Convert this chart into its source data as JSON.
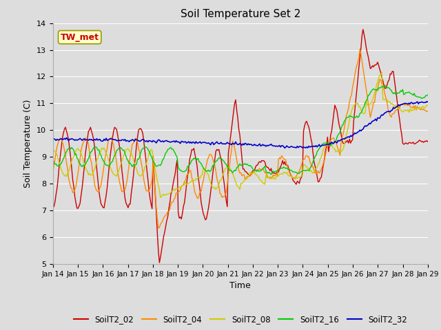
{
  "title": "Soil Temperature Set 2",
  "xlabel": "Time",
  "ylabel": "Soil Temperature (C)",
  "ylim": [
    5.0,
    14.0
  ],
  "yticks": [
    5.0,
    6.0,
    7.0,
    8.0,
    9.0,
    10.0,
    11.0,
    12.0,
    13.0,
    14.0
  ],
  "xtick_labels": [
    "Jan 14",
    "Jan 15",
    "Jan 16",
    "Jan 17",
    "Jan 18",
    "Jan 19",
    "Jan 20",
    "Jan 21",
    "Jan 22",
    "Jan 23",
    "Jan 24",
    "Jan 25",
    "Jan 26",
    "Jan 27",
    "Jan 28",
    "Jan 29"
  ],
  "series_colors": {
    "SoilT2_02": "#cc0000",
    "SoilT2_04": "#ff8800",
    "SoilT2_08": "#cccc00",
    "SoilT2_16": "#00cc00",
    "SoilT2_32": "#0000cc"
  },
  "background_color": "#dddddd",
  "plot_bg_color": "#dddddd",
  "grid_color": "#ffffff",
  "annotation_text": "TW_met",
  "annotation_color": "#cc0000",
  "annotation_bg": "#ffffcc",
  "annotation_border": "#999900"
}
